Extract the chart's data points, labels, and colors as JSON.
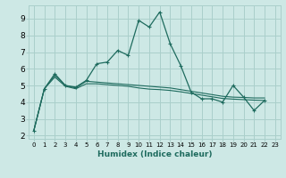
{
  "xlabel": "Humidex (Indice chaleur)",
  "xlim": [
    -0.5,
    23.5
  ],
  "ylim": [
    1.8,
    9.8
  ],
  "yticks": [
    2,
    3,
    4,
    5,
    6,
    7,
    8,
    9
  ],
  "xticks": [
    0,
    1,
    2,
    3,
    4,
    5,
    6,
    7,
    8,
    9,
    10,
    11,
    12,
    13,
    14,
    15,
    16,
    17,
    18,
    19,
    20,
    21,
    22,
    23
  ],
  "bg_color": "#cde8e5",
  "grid_color": "#aacfcb",
  "line_color": "#1e6b5e",
  "series": [
    [
      2.3,
      4.8,
      5.7,
      5.0,
      4.9,
      5.3,
      6.3,
      6.4,
      7.1,
      6.8,
      8.9,
      8.5,
      9.4,
      7.5,
      6.2,
      4.6,
      4.2,
      4.2,
      4.0,
      5.0,
      4.3,
      3.5,
      4.1
    ],
    [
      2.3,
      4.8,
      5.6,
      5.0,
      4.85,
      5.25,
      5.2,
      5.15,
      5.1,
      5.05,
      5.0,
      4.95,
      4.9,
      4.85,
      4.75,
      4.65,
      4.55,
      4.45,
      4.35,
      4.3,
      4.28,
      4.25,
      4.25
    ],
    [
      2.3,
      4.8,
      5.5,
      4.95,
      4.8,
      5.1,
      5.1,
      5.05,
      5.0,
      4.95,
      4.85,
      4.78,
      4.75,
      4.7,
      4.62,
      4.52,
      4.42,
      4.32,
      4.22,
      4.18,
      4.15,
      4.12,
      4.1
    ]
  ]
}
